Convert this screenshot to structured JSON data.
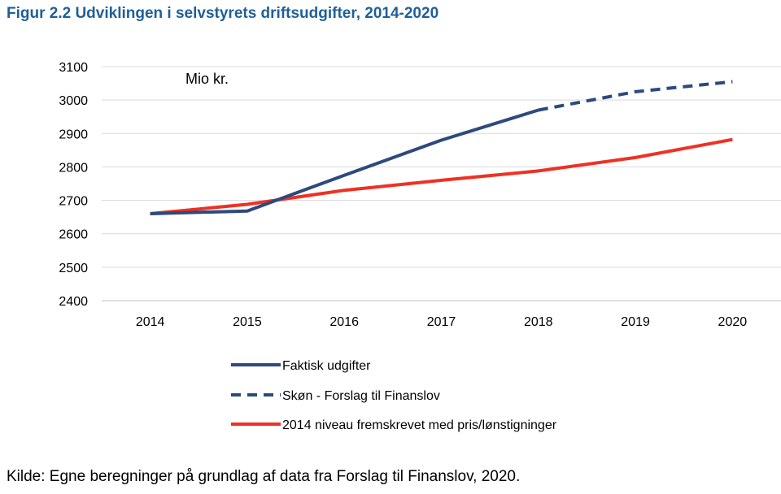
{
  "figure": {
    "title": "Figur 2.2 Udviklingen i selvstyrets driftsudgifter, 2014-2020",
    "source": "Kilde: Egne beregninger på grundlag af data fra Forslag til Finanslov, 2020."
  },
  "chart_data": {
    "type": "line",
    "title": "Figur 2.2 Udviklingen i selvstyrets driftsudgifter, 2014-2020",
    "unit_label": "Mio kr.",
    "xlabel": "",
    "ylabel": "",
    "categories": [
      "2014",
      "2015",
      "2016",
      "2017",
      "2018",
      "2019",
      "2020"
    ],
    "y_ticks": [
      "2400",
      "2500",
      "2600",
      "2700",
      "2800",
      "2900",
      "3000",
      "3100"
    ],
    "ylim": [
      2400,
      3100
    ],
    "grid": true,
    "legend_position": "bottom",
    "series": [
      {
        "name": "Faktisk udgifter",
        "color": "#2c4a7c",
        "style": "solid",
        "values": [
          2660,
          2668,
          2775,
          2880,
          2970,
          null,
          null
        ]
      },
      {
        "name": "Skøn - Forslag til Finanslov",
        "color": "#2c4a7c",
        "style": "dashed",
        "values": [
          null,
          null,
          null,
          null,
          2970,
          3025,
          3055
        ]
      },
      {
        "name": "2014 niveau fremskrevet med pris/lønstigninger",
        "color": "#ee3124",
        "style": "solid",
        "values": [
          2660,
          2688,
          2730,
          2760,
          2788,
          2828,
          2882
        ]
      }
    ]
  }
}
